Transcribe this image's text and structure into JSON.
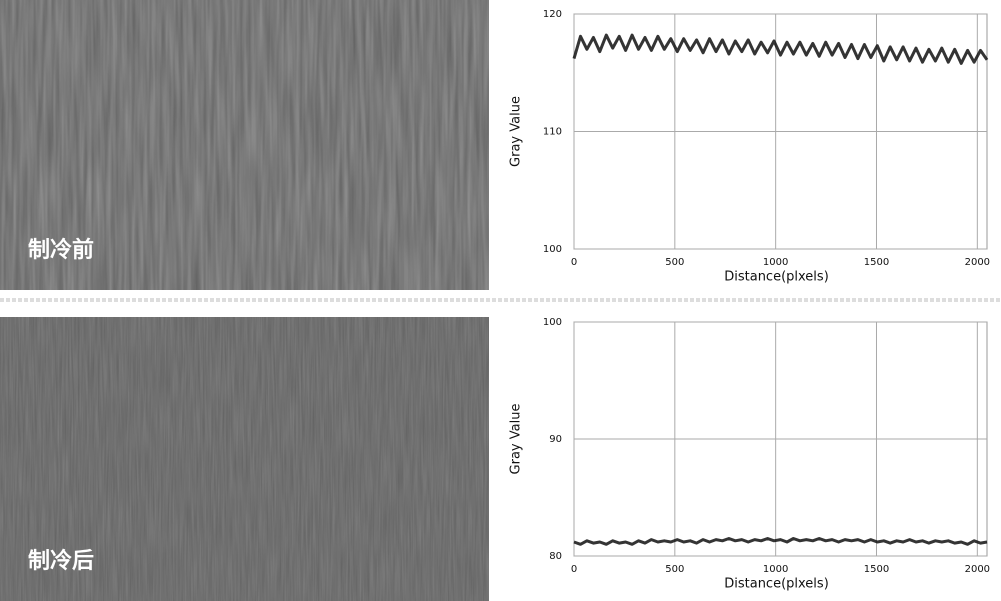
{
  "images": [
    {
      "label": "制冷前"
    },
    {
      "label": "制冷后"
    }
  ],
  "chart_data": [
    {
      "type": "line",
      "ylabel": "Gray Value",
      "xlabel": "Distance(plxels)",
      "color": "#111111",
      "grid": true,
      "xlim": [
        0,
        2048
      ],
      "xticks": [
        0,
        500,
        1000,
        1500,
        2000
      ],
      "ylim": [
        100,
        120
      ],
      "yticks": [
        100,
        110,
        120
      ],
      "x": [
        0,
        32,
        64,
        96,
        128,
        160,
        192,
        224,
        256,
        288,
        320,
        352,
        384,
        416,
        448,
        480,
        512,
        544,
        576,
        608,
        640,
        672,
        704,
        736,
        768,
        800,
        832,
        864,
        896,
        928,
        960,
        992,
        1024,
        1056,
        1088,
        1120,
        1152,
        1184,
        1216,
        1248,
        1280,
        1312,
        1344,
        1376,
        1408,
        1440,
        1472,
        1504,
        1536,
        1568,
        1600,
        1632,
        1664,
        1696,
        1728,
        1760,
        1792,
        1824,
        1856,
        1888,
        1920,
        1952,
        1984,
        2016,
        2048
      ],
      "values": [
        116.2,
        118.1,
        117.0,
        118.0,
        116.8,
        118.2,
        117.1,
        118.1,
        116.9,
        118.2,
        117.0,
        118.0,
        116.9,
        118.1,
        117.0,
        117.9,
        116.8,
        117.9,
        116.9,
        117.8,
        116.7,
        117.9,
        116.8,
        117.8,
        116.6,
        117.7,
        116.8,
        117.8,
        116.6,
        117.6,
        116.7,
        117.7,
        116.5,
        117.6,
        116.6,
        117.6,
        116.5,
        117.5,
        116.4,
        117.6,
        116.5,
        117.5,
        116.3,
        117.4,
        116.2,
        117.4,
        116.3,
        117.3,
        116.0,
        117.2,
        116.1,
        117.2,
        116.0,
        117.1,
        115.9,
        117.0,
        116.0,
        117.1,
        115.9,
        117.0,
        115.8,
        116.9,
        115.9,
        116.9,
        116.1
      ]
    },
    {
      "type": "line",
      "ylabel": "Gray Value",
      "xlabel": "Distance(plxels)",
      "color": "#111111",
      "grid": true,
      "xlim": [
        0,
        2048
      ],
      "xticks": [
        0,
        500,
        1000,
        1500,
        2000
      ],
      "ylim": [
        80,
        100
      ],
      "yticks": [
        80,
        90,
        100
      ],
      "x": [
        0,
        32,
        64,
        96,
        128,
        160,
        192,
        224,
        256,
        288,
        320,
        352,
        384,
        416,
        448,
        480,
        512,
        544,
        576,
        608,
        640,
        672,
        704,
        736,
        768,
        800,
        832,
        864,
        896,
        928,
        960,
        992,
        1024,
        1056,
        1088,
        1120,
        1152,
        1184,
        1216,
        1248,
        1280,
        1312,
        1344,
        1376,
        1408,
        1440,
        1472,
        1504,
        1536,
        1568,
        1600,
        1632,
        1664,
        1696,
        1728,
        1760,
        1792,
        1824,
        1856,
        1888,
        1920,
        1952,
        1984,
        2016,
        2048
      ],
      "values": [
        81.2,
        81.0,
        81.3,
        81.1,
        81.2,
        81.0,
        81.3,
        81.1,
        81.2,
        81.0,
        81.3,
        81.1,
        81.4,
        81.2,
        81.3,
        81.2,
        81.4,
        81.2,
        81.3,
        81.1,
        81.4,
        81.2,
        81.4,
        81.3,
        81.5,
        81.3,
        81.4,
        81.2,
        81.4,
        81.3,
        81.5,
        81.3,
        81.4,
        81.2,
        81.5,
        81.3,
        81.4,
        81.3,
        81.5,
        81.3,
        81.4,
        81.2,
        81.4,
        81.3,
        81.4,
        81.2,
        81.4,
        81.2,
        81.3,
        81.1,
        81.3,
        81.2,
        81.4,
        81.2,
        81.3,
        81.1,
        81.3,
        81.2,
        81.3,
        81.1,
        81.2,
        81.0,
        81.3,
        81.1,
        81.2
      ]
    }
  ]
}
